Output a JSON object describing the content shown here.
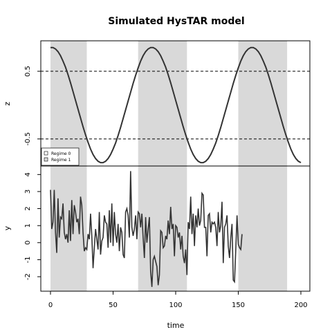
{
  "chart_data": {
    "type": "line",
    "title": "Simulated HysTAR model",
    "xlabel": "time",
    "xlim": [
      0,
      200
    ],
    "x_ticks": [
      0,
      50,
      100,
      150,
      200
    ],
    "legend": {
      "placement": "bottom-left",
      "entries": [
        "Regime 0",
        "Regime 1"
      ],
      "colors": [
        "#ffffff",
        "#d9d9d9"
      ]
    },
    "regime1_intervals": [
      [
        0,
        29
      ],
      [
        70,
        109
      ],
      [
        150,
        189
      ]
    ],
    "colors": {
      "shade": "#d9d9d9",
      "line": "#333333",
      "threshold": "#000000"
    },
    "panels": [
      {
        "name": "z",
        "ylabel": "z",
        "ylim": [
          -0.9,
          0.95
        ],
        "y_ticks": [
          0.5,
          -0.5
        ],
        "y_tick_labels": [
          "0.5",
          "-0.5"
        ],
        "thresholds": [
          0.5,
          -0.5
        ],
        "series": {
          "x": [
            0,
            2,
            4,
            6,
            8,
            10,
            12,
            14,
            16,
            18,
            20,
            22,
            24,
            26,
            28,
            30,
            32,
            34,
            36,
            38,
            40,
            42,
            44,
            46,
            48,
            50,
            52,
            54,
            56,
            58,
            60,
            62,
            64,
            66,
            68,
            70,
            72,
            74,
            76,
            78,
            80,
            82,
            84,
            86,
            88,
            90,
            92,
            94,
            96,
            98,
            100,
            102,
            104,
            106,
            108,
            110,
            112,
            114,
            116,
            118,
            120,
            122,
            124,
            126,
            128,
            130,
            132,
            134,
            136,
            138,
            140,
            142,
            144,
            146,
            148,
            150,
            152,
            154,
            156,
            158,
            160,
            162,
            164,
            166,
            168,
            170,
            172,
            174,
            176,
            178,
            180,
            182,
            184,
            186,
            188,
            190,
            192,
            194,
            196,
            198,
            200
          ],
          "values": [
            0.85,
            0.85,
            0.83,
            0.79,
            0.73,
            0.65,
            0.56,
            0.45,
            0.33,
            0.2,
            0.07,
            -0.06,
            -0.19,
            -0.32,
            -0.44,
            -0.55,
            -0.65,
            -0.73,
            -0.79,
            -0.83,
            -0.85,
            -0.85,
            -0.83,
            -0.79,
            -0.73,
            -0.65,
            -0.56,
            -0.45,
            -0.33,
            -0.2,
            -0.07,
            0.06,
            0.19,
            0.32,
            0.44,
            0.55,
            0.65,
            0.73,
            0.79,
            0.83,
            0.85,
            0.85,
            0.83,
            0.79,
            0.73,
            0.65,
            0.56,
            0.45,
            0.33,
            0.2,
            0.07,
            -0.06,
            -0.19,
            -0.32,
            -0.44,
            -0.55,
            -0.65,
            -0.73,
            -0.79,
            -0.83,
            -0.85,
            -0.85,
            -0.83,
            -0.79,
            -0.73,
            -0.65,
            -0.56,
            -0.45,
            -0.33,
            -0.2,
            -0.07,
            0.06,
            0.19,
            0.32,
            0.44,
            0.55,
            0.65,
            0.73,
            0.79,
            0.83,
            0.85,
            0.85,
            0.83,
            0.79,
            0.73,
            0.65,
            0.56,
            0.45,
            0.33,
            0.2,
            0.07,
            -0.06,
            -0.19,
            -0.32,
            -0.44,
            -0.55,
            -0.65,
            -0.73,
            -0.79,
            -0.83,
            -0.85
          ]
        }
      },
      {
        "name": "y",
        "ylabel": "y",
        "ylim": [
          -2.85,
          4.5
        ],
        "y_ticks": [
          4,
          3,
          2,
          1,
          0,
          -1,
          -2
        ],
        "y_tick_labels": [
          "4",
          "3",
          "2",
          "1",
          "0",
          "-1",
          "-2"
        ],
        "series": {
          "x_start": 0,
          "x_step": 1,
          "values": [
            3.1,
            0.8,
            1.2,
            3.1,
            0.6,
            -0.6,
            2.6,
            0.3,
            1.5,
            1.4,
            2.3,
            0.6,
            0.2,
            0.5,
            0.0,
            1.9,
            0.1,
            2.5,
            0.5,
            2.2,
            1.8,
            1.2,
            1.4,
            0.5,
            2.7,
            2.2,
            0.6,
            -0.5,
            -0.3,
            -0.4,
            0.5,
            0.2,
            1.7,
            0.4,
            -1.5,
            -0.3,
            0.8,
            0.2,
            -0.4,
            1.8,
            -0.7,
            0.1,
            0.3,
            1.6,
            1.2,
            1.1,
            -0.3,
            1.9,
            0.0,
            2.3,
            -0.2,
            1.8,
            0.5,
            0.0,
            1.1,
            -0.5,
            0.9,
            0.6,
            -0.7,
            -0.9,
            1.8,
            2.0,
            1.6,
            0.3,
            4.2,
            0.9,
            0.4,
            0.8,
            1.6,
            0.2,
            1.8,
            1.7,
            0.9,
            1.7,
            0.3,
            -0.9,
            1.5,
            0.0,
            0.8,
            1.5,
            -1.7,
            -2.6,
            -1.0,
            -0.8,
            -1.1,
            -1.4,
            -2.5,
            -1.9,
            0.7,
            0.6,
            -0.3,
            -0.2,
            0.4,
            0.2,
            1.3,
            0.5,
            2.1,
            0.8,
            1.1,
            -0.8,
            1.0,
            0.9,
            0.3,
            0.6,
            -0.4,
            0.4,
            -0.8,
            -1.2,
            -0.4,
            -1.9,
            1.2,
            0.8,
            2.7,
            0.5,
            1.7,
            -0.2,
            1.6,
            0.9,
            2.0,
            1.0,
            1.3,
            2.9,
            2.8,
            0.9,
            0.9,
            -0.8,
            1.6,
            1.7,
            0.6,
            1.2,
            1.1,
            1.2,
            0.9,
            -0.2,
            1.8,
            0.6,
            1.0,
            2.4,
            -1.2,
            0.9,
            1.1,
            1.6,
            -0.2,
            -0.9,
            0.3,
            1.1,
            -2.2,
            -2.3,
            -0.4,
            1.6,
            -0.1,
            -0.3,
            -0.4,
            0.5
          ]
        }
      }
    ]
  }
}
